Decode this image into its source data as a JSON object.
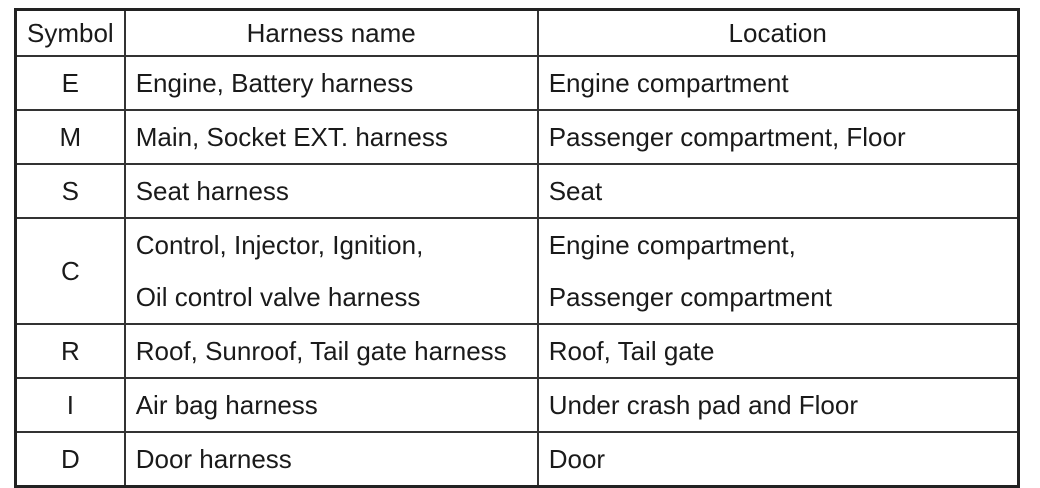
{
  "table": {
    "headers": [
      "Symbol",
      "Harness name",
      "Location"
    ],
    "rows": [
      {
        "symbol": "E",
        "name": [
          "Engine, Battery harness"
        ],
        "location": [
          "Engine compartment"
        ]
      },
      {
        "symbol": "M",
        "name": [
          "Main, Socket EXT. harness"
        ],
        "location": [
          "Passenger compartment, Floor"
        ]
      },
      {
        "symbol": "S",
        "name": [
          "Seat harness"
        ],
        "location": [
          "Seat"
        ]
      },
      {
        "symbol": "C",
        "name": [
          "Control, Injector, Ignition,",
          "Oil control valve harness"
        ],
        "location": [
          "Engine compartment,",
          "Passenger compartment"
        ]
      },
      {
        "symbol": "R",
        "name": [
          "Roof, Sunroof, Tail gate harness"
        ],
        "location": [
          "Roof, Tail gate"
        ]
      },
      {
        "symbol": "I",
        "name": [
          "Air bag harness"
        ],
        "location": [
          "Under crash pad and Floor"
        ]
      },
      {
        "symbol": "D",
        "name": [
          "Door harness"
        ],
        "location": [
          "Door"
        ]
      }
    ]
  }
}
